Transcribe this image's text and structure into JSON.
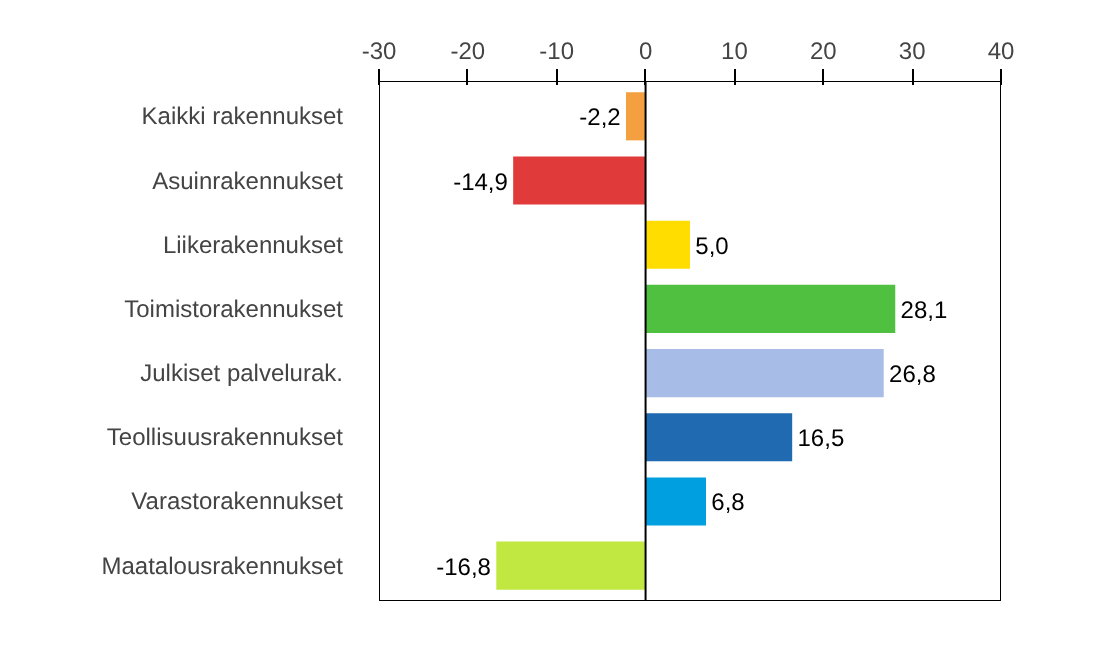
{
  "chart_data": {
    "type": "bar",
    "orientation": "horizontal",
    "categories": [
      "Kaikki rakennukset",
      "Asuinrakennukset",
      "Liikerakennukset",
      "Toimistorakennukset",
      "Julkiset palvelurak.",
      "Teollisuusrakennukset",
      "Varastorakennukset",
      "Maatalousrakennukset"
    ],
    "values": [
      -2.2,
      -14.9,
      5.0,
      28.1,
      26.8,
      16.5,
      6.8,
      -16.8
    ],
    "value_labels": [
      "-2,2",
      "-14,9",
      "5,0",
      "28,1",
      "26,8",
      "16,5",
      "6,8",
      "-16,8"
    ],
    "colors": [
      "#f4a040",
      "#e03a3a",
      "#ffdd00",
      "#50c040",
      "#a8bce8",
      "#1f6ab0",
      "#00a0e0",
      "#c0e840"
    ],
    "xlim": [
      -30,
      40
    ],
    "xticks": [
      -30,
      -20,
      -10,
      0,
      10,
      20,
      30,
      40
    ],
    "grid": false,
    "ref_lines": [
      {
        "axis": "x",
        "value": 0,
        "color": "#000000"
      }
    ]
  }
}
